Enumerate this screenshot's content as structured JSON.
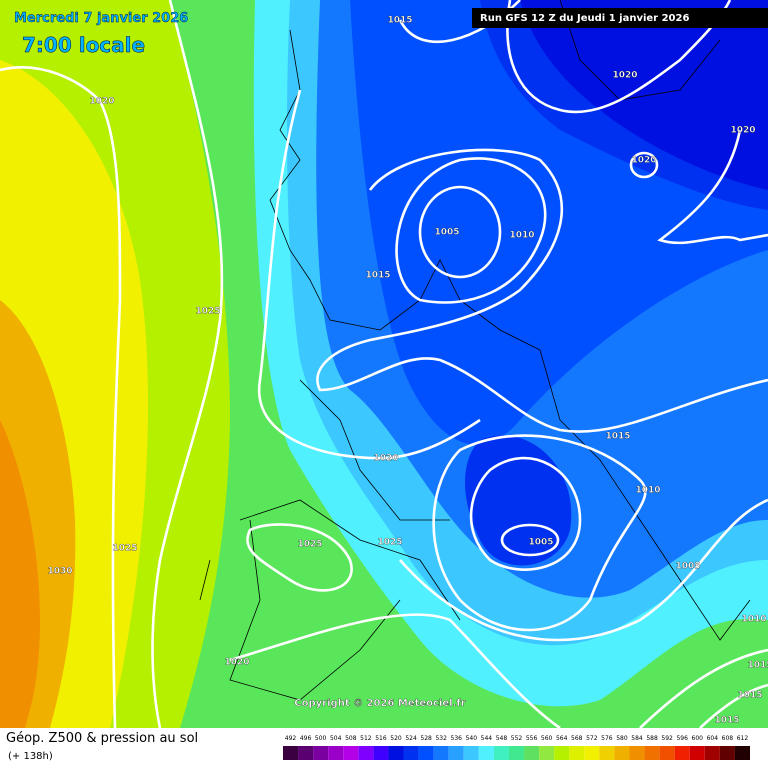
{
  "header": {
    "date": "Mercredi 7 janvier 2026",
    "time": "7:00 locale",
    "run": "Run GFS 12 Z du Jeudi 1 janvier 2026"
  },
  "isobar_labels": [
    "1015",
    "1020",
    "1020",
    "1020",
    "1020",
    "1005",
    "1010",
    "1015",
    "1025",
    "1020",
    "1015",
    "1010",
    "1025",
    "1025",
    "1005",
    "1025",
    "1030",
    "1005",
    "1010",
    "1020",
    "1015",
    "1015",
    "1015"
  ],
  "copyright": "Copyright © 2026 Meteociel.fr",
  "footer": {
    "title": "Géop. Z500 & pression au sol",
    "lead": "(+ 138h)"
  },
  "legend": {
    "scale": [
      492,
      496,
      500,
      504,
      508,
      512,
      516,
      520,
      524,
      528,
      532,
      536,
      540,
      544,
      548,
      552,
      556,
      560,
      564,
      568,
      572,
      576,
      580,
      584,
      588,
      592,
      596,
      600,
      604,
      608,
      612
    ],
    "colors": [
      "#3a0040",
      "#5a0070",
      "#7a00a0",
      "#9a00c8",
      "#b400e6",
      "#8000ff",
      "#4000ff",
      "#0010e0",
      "#0030f0",
      "#0050ff",
      "#1478ff",
      "#28a0ff",
      "#3cc8ff",
      "#50f0ff",
      "#40f0c0",
      "#40e890",
      "#60e060",
      "#90e840",
      "#b4f000",
      "#dcf000",
      "#f0f000",
      "#f0d000",
      "#f0b000",
      "#f09000",
      "#f07000",
      "#f05000",
      "#f02000",
      "#d00000",
      "#a00000",
      "#600000",
      "#200000"
    ]
  }
}
